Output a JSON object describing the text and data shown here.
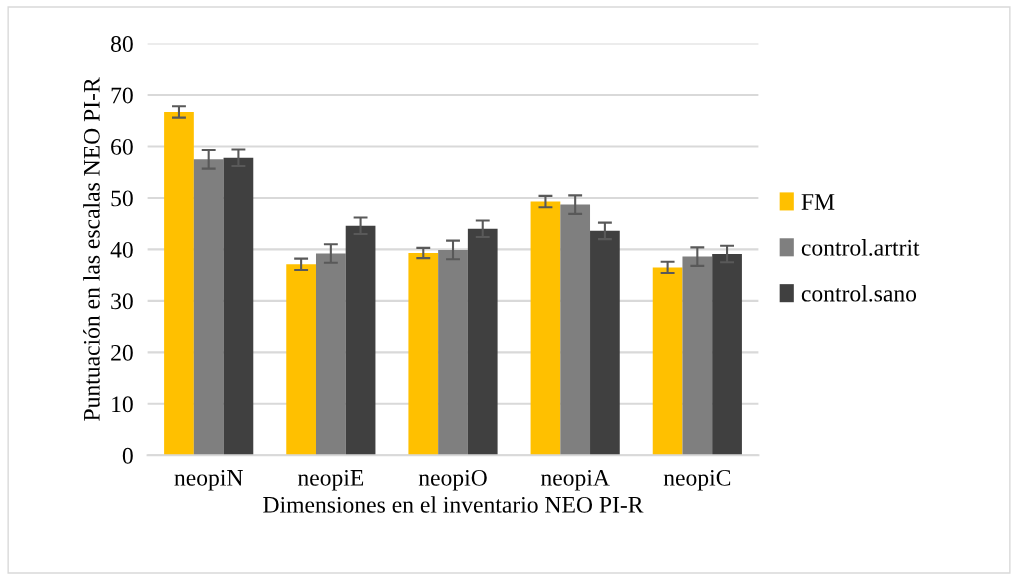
{
  "chart_data": {
    "type": "bar",
    "xlabel": "Dimensiones en el inventario NEO PI-R",
    "ylabel": "Puntuación en las escalas NEO PI-R",
    "categories": [
      "neopiN",
      "neopiE",
      "neopiO",
      "neopiA",
      "neopiC"
    ],
    "series": [
      {
        "name": "FM",
        "color": "#ffc000",
        "values": [
          66.7,
          37.1,
          39.3,
          49.3,
          36.5
        ],
        "errors": [
          1.1,
          1.1,
          1.0,
          1.1,
          1.1
        ]
      },
      {
        "name": "control.artrit",
        "color": "#7f7f7f",
        "values": [
          57.5,
          39.2,
          39.9,
          48.7,
          38.6
        ],
        "errors": [
          1.8,
          1.8,
          1.8,
          1.8,
          1.8
        ]
      },
      {
        "name": "control.sano",
        "color": "#404040",
        "values": [
          57.8,
          44.6,
          44.0,
          43.6,
          39.1
        ],
        "errors": [
          1.6,
          1.6,
          1.6,
          1.6,
          1.6
        ]
      }
    ],
    "ylim": [
      0,
      80
    ],
    "yticks": [
      0,
      10,
      20,
      30,
      40,
      50,
      60,
      70,
      80
    ],
    "grid": "y",
    "legend": "right"
  }
}
